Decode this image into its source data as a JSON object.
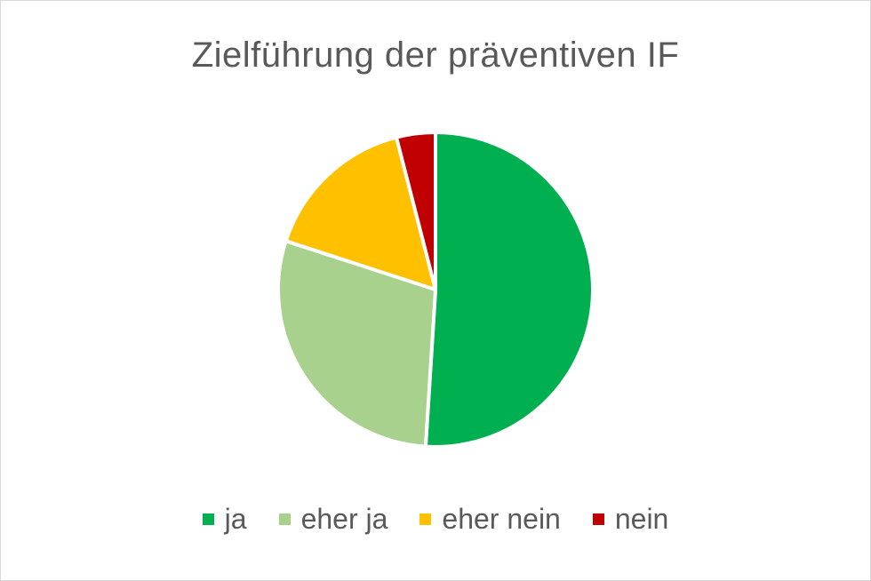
{
  "chart_data": {
    "type": "pie",
    "title": "Zielführung der präventiven IF",
    "categories": [
      "ja",
      "eher ja",
      "eher nein",
      "nein"
    ],
    "values": [
      51,
      29,
      16,
      4
    ],
    "colors": [
      "#00b050",
      "#a9d18e",
      "#ffc000",
      "#c00000"
    ],
    "legend": "bottom",
    "start_angle": "top",
    "direction": "clockwise"
  }
}
